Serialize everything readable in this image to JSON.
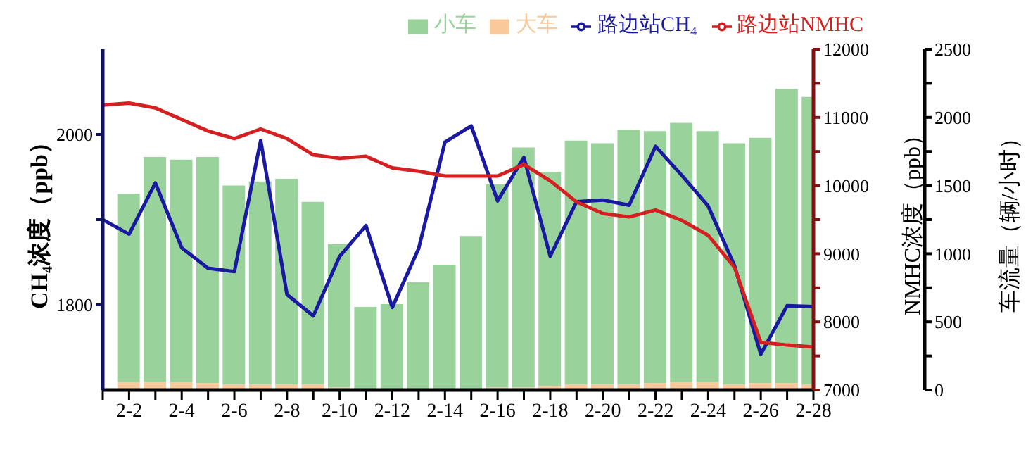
{
  "chart_data": {
    "type": "bar",
    "stacked": true,
    "legend": "top",
    "marker": "none",
    "line_style": "solid",
    "categories": [
      null,
      "2-2",
      null,
      "2-4",
      null,
      "2-6",
      null,
      "2-8",
      null,
      "2-10",
      null,
      "2-12",
      null,
      "2-14",
      null,
      "2-16",
      null,
      "2-18",
      null,
      "2-20",
      null,
      "2-22",
      null,
      "2-24",
      null,
      "2-26",
      null,
      "2-28"
    ],
    "ylabel": "CH₄浓度（ppb）",
    "ylim": [
      1700,
      2100
    ],
    "yticks": [
      1800,
      {
        "value": 1900,
        "label": null
      },
      2000
    ],
    "y2label": "NMHC浓度（ppb）",
    "y2lim": [
      7000,
      12000
    ],
    "y2ticks": [
      7000,
      {
        "value": 7500,
        "label": null
      },
      8000,
      {
        "value": 8500,
        "label": null
      },
      9000,
      {
        "value": 9500,
        "label": null
      },
      10000,
      {
        "value": 10500,
        "label": null
      },
      11000,
      {
        "value": 11500,
        "label": null
      },
      12000
    ],
    "y3label": "车流量（辆/小时）",
    "y3lim": [
      0,
      2500
    ],
    "y3ticks": [
      0,
      {
        "value": 250,
        "label": null
      },
      500,
      {
        "value": 750,
        "label": null
      },
      1000,
      {
        "value": 1250,
        "label": null
      },
      1500,
      {
        "value": 1750,
        "label": null
      },
      2000,
      {
        "value": 2250,
        "label": null
      },
      2500
    ],
    "series": [
      {
        "name": "大车",
        "axis": "y3",
        "color": "#f9c89b",
        "values": [
          null,
          60,
          60,
          60,
          50,
          40,
          40,
          40,
          40,
          20,
          10,
          10,
          10,
          10,
          10,
          20,
          20,
          30,
          40,
          40,
          40,
          50,
          60,
          60,
          40,
          50,
          50,
          40
        ]
      },
      {
        "name": "小车",
        "axis": "y3",
        "color": "#99d39b",
        "values": [
          null,
          1380,
          1650,
          1630,
          1660,
          1460,
          1490,
          1510,
          1340,
          1050,
          600,
          620,
          780,
          910,
          1120,
          1490,
          1760,
          1570,
          1790,
          1770,
          1870,
          1850,
          1900,
          1840,
          1770,
          1800,
          2160,
          2110
        ]
      },
      {
        "name": "路边站CH₄",
        "type": "line",
        "axis": "y",
        "color": "#1a1aa0",
        "values": [
          1900,
          1883,
          1943,
          1867,
          1843,
          1839,
          1993,
          1812,
          1787,
          1857,
          1893,
          1797,
          1866,
          1991,
          2010,
          1922,
          1973,
          1857,
          1921,
          1923,
          1917,
          1986,
          1952,
          1916,
          1846,
          1742,
          1799,
          1798
        ]
      },
      {
        "name": "路边站NMHC",
        "type": "line",
        "axis": "y2",
        "color": "#d42020",
        "values": [
          11180,
          11210,
          11140,
          10970,
          10800,
          10690,
          10830,
          10690,
          10450,
          10400,
          10430,
          10260,
          10210,
          10140,
          10140,
          10140,
          10310,
          10070,
          9760,
          9590,
          9540,
          9640,
          9490,
          9270,
          8800,
          7700,
          7660,
          7630
        ]
      }
    ]
  }
}
